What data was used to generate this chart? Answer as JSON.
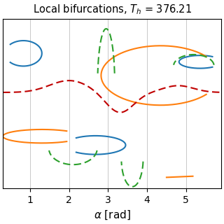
{
  "title": "Local bifurcations, $T_h$ = 376.21",
  "xlabel": "$\\alpha$ [rad]",
  "xlim": [
    0.3,
    5.9
  ],
  "xticks": [
    1,
    2,
    3,
    4,
    5
  ],
  "colors": {
    "blue": "#1f77b4",
    "orange": "#ff7f0e",
    "red": "#c00000",
    "green": "#2ca02c"
  },
  "figsize": [
    3.2,
    3.2
  ],
  "dpi": 100
}
